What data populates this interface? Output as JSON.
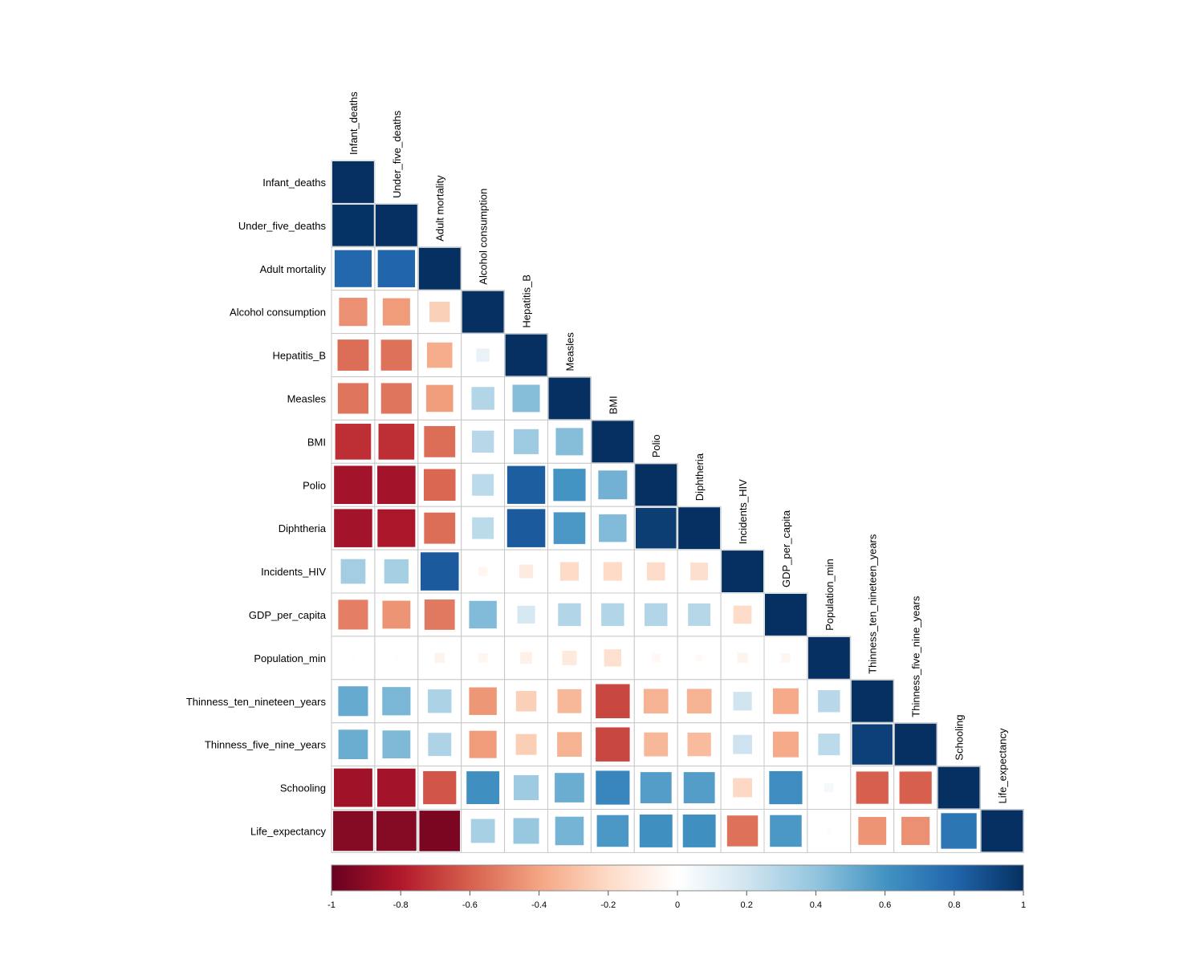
{
  "chart_data": {
    "type": "heatmap",
    "subtype": "correlation-matrix-lower-triangle",
    "marker_shape": "square",
    "marker_size_encodes": "absolute value",
    "variables": [
      "Infant_deaths",
      "Under_five_deaths",
      "Adult mortality",
      "Alcohol consumption",
      "Hepatitis_B",
      "Measles",
      "BMI",
      "Polio",
      "Diphtheria",
      "Incidents_HIV",
      "GDP_per_capita",
      "Population_min",
      "Thinness_ten_nineteen_years",
      "Thinness_five_nine_years",
      "Schooling",
      "Life_expectancy"
    ],
    "matrix": [
      [
        1.0
      ],
      [
        0.99,
        1.0
      ],
      [
        0.79,
        0.8,
        1.0
      ],
      [
        -0.46,
        -0.43,
        -0.24,
        1.0
      ],
      [
        -0.56,
        -0.55,
        -0.37,
        0.1,
        1.0
      ],
      [
        -0.54,
        -0.54,
        -0.42,
        0.3,
        0.43,
        1.0
      ],
      [
        -0.74,
        -0.74,
        -0.56,
        0.28,
        0.36,
        0.43,
        1.0
      ],
      [
        -0.84,
        -0.84,
        -0.58,
        0.27,
        0.83,
        0.6,
        0.48,
        1.0
      ],
      [
        -0.84,
        -0.82,
        -0.56,
        0.27,
        0.84,
        0.58,
        0.44,
        0.95,
        1.0
      ],
      [
        0.35,
        0.34,
        0.84,
        -0.05,
        -0.11,
        -0.2,
        -0.2,
        -0.19,
        -0.18,
        1.0
      ],
      [
        -0.51,
        -0.45,
        -0.53,
        0.44,
        0.18,
        0.3,
        0.3,
        0.3,
        0.29,
        -0.19,
        1.0
      ],
      [
        -0.01,
        -0.01,
        -0.06,
        -0.05,
        -0.08,
        -0.12,
        -0.17,
        -0.04,
        -0.03,
        -0.06,
        -0.05,
        1.0
      ],
      [
        0.51,
        0.46,
        0.32,
        -0.44,
        -0.24,
        -0.33,
        -0.67,
        -0.35,
        -0.35,
        0.2,
        -0.38,
        0.28,
        1.0
      ],
      [
        0.5,
        0.45,
        0.31,
        -0.43,
        -0.25,
        -0.35,
        -0.67,
        -0.33,
        -0.32,
        0.21,
        -0.38,
        0.27,
        0.94,
        1.0
      ],
      [
        -0.85,
        -0.84,
        -0.63,
        0.62,
        0.36,
        0.5,
        0.66,
        0.56,
        0.56,
        -0.21,
        0.63,
        0.05,
        -0.6,
        -0.6,
        1.0
      ],
      [
        -0.92,
        -0.92,
        -0.95,
        0.33,
        0.38,
        0.47,
        0.58,
        0.62,
        0.62,
        -0.55,
        0.58,
        0.02,
        -0.45,
        -0.46,
        0.73,
        1.0
      ]
    ],
    "colorbar": {
      "ticks": [
        "-1",
        "-0.8",
        "-0.6",
        "-0.4",
        "-0.2",
        "0",
        "0.2",
        "0.4",
        "0.6",
        "0.8",
        "1"
      ],
      "range": [
        -1,
        1
      ],
      "stops": [
        [
          "-1",
          "#67001F"
        ],
        [
          "-0.8",
          "#B2182B"
        ],
        [
          "-0.6",
          "#D6604D"
        ],
        [
          "-0.4",
          "#F4A582"
        ],
        [
          "-0.2",
          "#FDDBC7"
        ],
        [
          "0",
          "#FFFFFF"
        ],
        [
          "0.2",
          "#D1E5F0"
        ],
        [
          "0.4",
          "#92C5DE"
        ],
        [
          "0.6",
          "#4393C3"
        ],
        [
          "0.8",
          "#2166AC"
        ],
        [
          "1",
          "#053061"
        ]
      ]
    },
    "title": "",
    "grid": true,
    "legend_placement": "bottom"
  }
}
